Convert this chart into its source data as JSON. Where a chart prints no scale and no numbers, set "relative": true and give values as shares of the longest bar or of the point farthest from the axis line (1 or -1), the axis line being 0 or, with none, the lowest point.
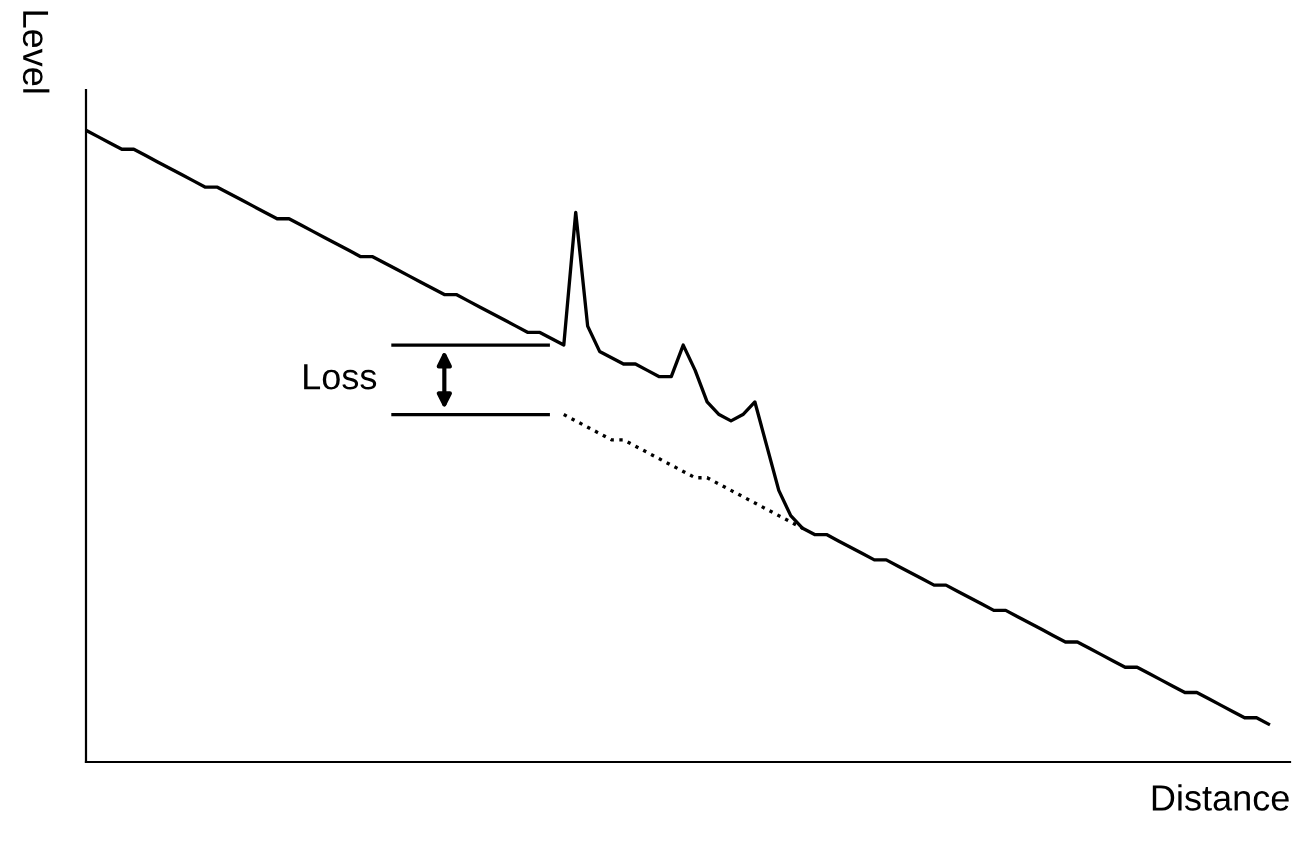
{
  "chart_data": {
    "type": "line",
    "relative": true,
    "xlabel": "Distance",
    "ylabel": "Level",
    "legend": false,
    "marker": "none",
    "categories": [
      null,
      null,
      null,
      null,
      null,
      null,
      null,
      null,
      null,
      null,
      null,
      null,
      null,
      null,
      null,
      null,
      null,
      null,
      null,
      null,
      null,
      null,
      null,
      null,
      null,
      null,
      null,
      null,
      null,
      null,
      null,
      null,
      null,
      null,
      null,
      null,
      null,
      null,
      null,
      null,
      null,
      null,
      null,
      null,
      null,
      null,
      null,
      null,
      null,
      null,
      null,
      null,
      null,
      null,
      null,
      null,
      null,
      null,
      null,
      null,
      null,
      null,
      null,
      null,
      null,
      null,
      null,
      null,
      null,
      null,
      null,
      null,
      null,
      null,
      null,
      null,
      null,
      null,
      null,
      null,
      null,
      null,
      null,
      null,
      null,
      null,
      null,
      null,
      null,
      null,
      null,
      null,
      null,
      null,
      null,
      null,
      null,
      null,
      null,
      null
    ],
    "series": [
      {
        "color": "#000000",
        "line_style": "solid",
        "values": [
          1.0,
          0.99,
          0.98,
          0.97,
          0.97,
          0.96,
          0.95,
          0.94,
          0.93,
          0.92,
          0.91,
          0.91,
          0.9,
          0.89,
          0.88,
          0.87,
          0.86,
          0.86,
          0.85,
          0.84,
          0.83,
          0.82,
          0.81,
          0.8,
          0.8,
          0.79,
          0.78,
          0.77,
          0.76,
          0.75,
          0.74,
          0.74,
          0.73,
          0.72,
          0.71,
          0.7,
          0.69,
          0.68,
          0.68,
          0.67,
          0.66,
          0.87,
          0.69,
          0.65,
          0.64,
          0.63,
          0.63,
          0.62,
          0.61,
          0.61,
          0.66,
          0.62,
          0.57,
          0.55,
          0.54,
          0.55,
          0.57,
          0.5,
          0.43,
          0.39,
          0.37,
          0.36,
          0.36,
          0.35,
          0.34,
          0.33,
          0.32,
          0.32,
          0.31,
          0.3,
          0.29,
          0.28,
          0.28,
          0.27,
          0.26,
          0.25,
          0.24,
          0.24,
          0.23,
          0.22,
          0.21,
          0.2,
          0.19,
          0.19,
          0.18,
          0.17,
          0.16,
          0.15,
          0.15,
          0.14,
          0.13,
          0.12,
          0.11,
          0.11,
          0.1,
          0.09,
          0.08,
          0.07,
          0.07,
          0.06
        ]
      },
      {
        "color": "#000000",
        "line_style": "dotted",
        "values": [
          null,
          null,
          null,
          null,
          null,
          null,
          null,
          null,
          null,
          null,
          null,
          null,
          null,
          null,
          null,
          null,
          null,
          null,
          null,
          null,
          null,
          null,
          null,
          null,
          null,
          null,
          null,
          null,
          null,
          null,
          null,
          null,
          null,
          null,
          null,
          null,
          null,
          null,
          null,
          null,
          0.55,
          0.54,
          0.53,
          0.52,
          0.51,
          0.51,
          0.5,
          0.49,
          0.48,
          0.47,
          0.46,
          0.45,
          0.45,
          0.44,
          0.43,
          0.42,
          0.41,
          0.4,
          0.39,
          0.38,
          0.37,
          null,
          null,
          null,
          null,
          null,
          null,
          null,
          null,
          null,
          null,
          null,
          null,
          null,
          null,
          null,
          null,
          null,
          null,
          null,
          null,
          null,
          null,
          null,
          null,
          null,
          null,
          null,
          null,
          null,
          null,
          null,
          null,
          null,
          null,
          null,
          null,
          null,
          null,
          null
        ]
      }
    ],
    "annotations": [
      "Loss"
    ]
  }
}
